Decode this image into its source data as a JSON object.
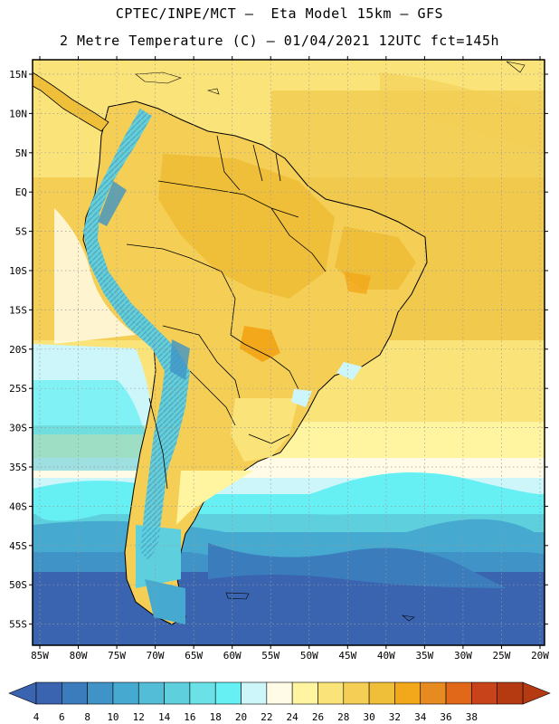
{
  "header": {
    "line1": "CPTEC/INPE/MCT –  Eta Model 15km – GFS",
    "line2": "2 Metre Temperature (C) – 01/04/2021 12UTC fct=145h"
  },
  "map": {
    "lat_labels": [
      "15N",
      "10N",
      "5N",
      "EQ",
      "5S",
      "10S",
      "15S",
      "20S",
      "25S",
      "30S",
      "35S",
      "40S",
      "45S",
      "50S",
      "55S"
    ],
    "lon_labels": [
      "85W",
      "80W",
      "75W",
      "70W",
      "65W",
      "60W",
      "55W",
      "50W",
      "45W",
      "40W",
      "35W",
      "30W",
      "25W",
      "20W"
    ]
  },
  "colorbar": {
    "ticks": [
      "4",
      "6",
      "8",
      "10",
      "12",
      "14",
      "16",
      "18",
      "20",
      "22",
      "24",
      "26",
      "28",
      "30",
      "32",
      "34",
      "36",
      "38"
    ],
    "colors": [
      "#3a64b0",
      "#3b7cbc",
      "#3f93c6",
      "#46a9cf",
      "#53bdd7",
      "#5ecfdd",
      "#6ae1e6",
      "#66f0f4",
      "#cdf6fa",
      "#fffbe6",
      "#fff5a0",
      "#fae47a",
      "#f5cf55",
      "#f0bf3a",
      "#f2a81a",
      "#e78a20",
      "#e06818",
      "#c8421a",
      "#b53a12"
    ],
    "left_arrow_color": "#3a64b0",
    "right_arrow_color": "#b53a12"
  }
}
